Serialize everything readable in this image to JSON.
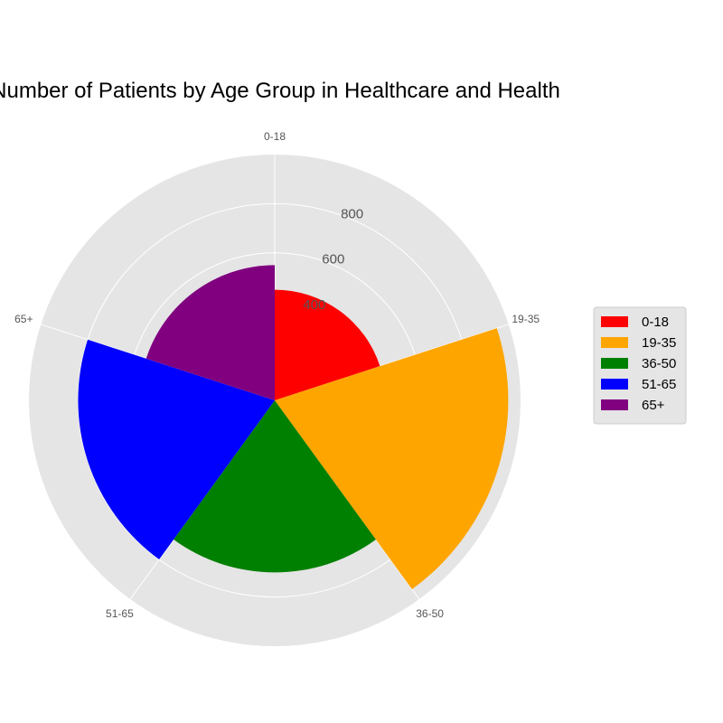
{
  "chart_data": {
    "type": "polar-bar",
    "title": "Number of Patients by Age Group in Healthcare and Health",
    "categories": [
      "0-18",
      "19-35",
      "36-50",
      "51-65",
      "65+"
    ],
    "values": [
      450,
      950,
      700,
      800,
      550
    ],
    "colors": [
      "#ff0000",
      "#ffa500",
      "#008000",
      "#0000ff",
      "#800080"
    ],
    "radial_ticks": [
      400,
      600,
      800
    ],
    "rlim": [
      0,
      1000
    ],
    "grid": true,
    "legend": {
      "position": "right",
      "entries": [
        "0-18",
        "19-35",
        "36-50",
        "51-65",
        "65+"
      ]
    }
  }
}
